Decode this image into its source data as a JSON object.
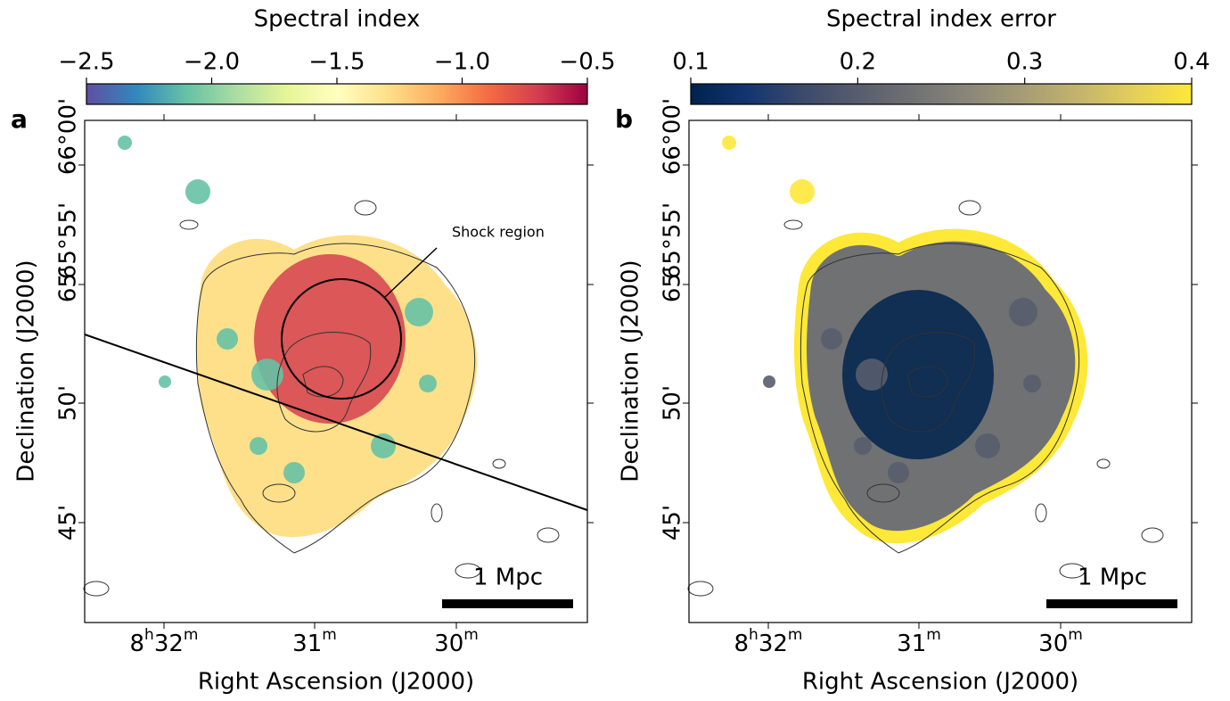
{
  "panels": [
    {
      "letter": "a",
      "colorbar": {
        "label": "Spectral index",
        "lim": [
          -2.5,
          -0.5
        ],
        "ticks": [
          {
            "value": -2.5,
            "label": "−2.5"
          },
          {
            "value": -2.0,
            "label": "−2.0"
          },
          {
            "value": -1.5,
            "label": "−1.5"
          },
          {
            "value": -1.0,
            "label": "−1.0"
          },
          {
            "value": -0.5,
            "label": "−0.5"
          }
        ],
        "colormap": [
          "#5e4fa2",
          "#3288bd",
          "#66c2a5",
          "#abdda4",
          "#e6f598",
          "#ffffbf",
          "#fee08b",
          "#fdae61",
          "#f46d43",
          "#d53e4f",
          "#9e0142"
        ]
      },
      "x_axis": {
        "label": "Right Ascension (J2000)",
        "ticks": [
          [
            "8",
            "h",
            "32",
            "m"
          ],
          [
            "31",
            "m"
          ],
          [
            "30",
            "m"
          ]
        ]
      },
      "y_axis": {
        "label": "Declination (J2000)",
        "ticks": [
          "66°00'",
          "65°55'",
          "65'",
          "50'",
          "45'"
        ]
      },
      "annotation": "Shock region",
      "scale_bar": "1 Mpc"
    },
    {
      "letter": "b",
      "colorbar": {
        "label": "Spectral index error",
        "lim": [
          0.1,
          0.4
        ],
        "ticks": [
          0.1,
          0.2,
          0.3,
          0.4
        ],
        "colormap": [
          "#00224e",
          "#123570",
          "#3b496c",
          "#575d6d",
          "#707173",
          "#8a8779",
          "#a69d75",
          "#c4b56c",
          "#e4cf5b",
          "#fee838"
        ]
      },
      "x_axis": {
        "label": "Right Ascension (J2000)",
        "ticks": [
          [
            "8",
            "h",
            "32",
            "m"
          ],
          [
            "31",
            "m"
          ],
          [
            "30",
            "m"
          ]
        ]
      },
      "y_axis": {
        "label": "Declination (J2000)",
        "ticks": [
          "66°00'",
          "65°55'",
          "65'",
          "50'",
          "45'"
        ]
      },
      "scale_bar": "1 Mpc"
    }
  ]
}
